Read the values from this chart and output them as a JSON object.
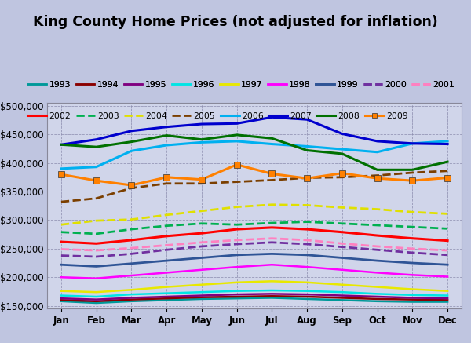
{
  "title": "King County Home Prices (not adjusted for inflation)",
  "months": [
    "Jan",
    "Feb",
    "Mar",
    "Apr",
    "May",
    "Jun",
    "Jul",
    "Aug",
    "Sep",
    "Oct",
    "Nov",
    "Dec"
  ],
  "background_color": "#bfc5e0",
  "plot_bg_color": "#d0d5ea",
  "series_order": [
    "1993",
    "1994",
    "1995",
    "1996",
    "1997",
    "1998",
    "1999",
    "2000",
    "2001",
    "2002",
    "2003",
    "2004",
    "2005",
    "2006",
    "2007",
    "2008",
    "2009"
  ],
  "styles": {
    "1993": {
      "color": "#009999",
      "ls": "-",
      "lw": 1.8,
      "marker": null,
      "ms": 5
    },
    "1994": {
      "color": "#8b0000",
      "ls": "-",
      "lw": 1.8,
      "marker": null,
      "ms": 5
    },
    "1995": {
      "color": "#800080",
      "ls": "-",
      "lw": 1.8,
      "marker": null,
      "ms": 5
    },
    "1996": {
      "color": "#00e5e5",
      "ls": "-",
      "lw": 1.8,
      "marker": null,
      "ms": 5
    },
    "1997": {
      "color": "#e8e800",
      "ls": "-",
      "lw": 1.8,
      "marker": null,
      "ms": 5
    },
    "1998": {
      "color": "#ff00ff",
      "ls": "-",
      "lw": 1.8,
      "marker": null,
      "ms": 5
    },
    "1999": {
      "color": "#2f5496",
      "ls": "-",
      "lw": 2.0,
      "marker": null,
      "ms": 5
    },
    "2000": {
      "color": "#7030a0",
      "ls": "--",
      "lw": 2.0,
      "marker": null,
      "ms": 5
    },
    "2001": {
      "color": "#ff80c0",
      "ls": "--",
      "lw": 2.0,
      "marker": null,
      "ms": 5
    },
    "2002": {
      "color": "#ff0000",
      "ls": "-",
      "lw": 2.2,
      "marker": null,
      "ms": 5
    },
    "2003": {
      "color": "#00b050",
      "ls": "--",
      "lw": 2.0,
      "marker": null,
      "ms": 5
    },
    "2004": {
      "color": "#e0e000",
      "ls": "--",
      "lw": 2.0,
      "marker": null,
      "ms": 5
    },
    "2005": {
      "color": "#7b3f00",
      "ls": "--",
      "lw": 2.0,
      "marker": null,
      "ms": 5
    },
    "2006": {
      "color": "#00b0f0",
      "ls": "-",
      "lw": 2.2,
      "marker": null,
      "ms": 5
    },
    "2007": {
      "color": "#0000cd",
      "ls": "-",
      "lw": 2.2,
      "marker": null,
      "ms": 5
    },
    "2008": {
      "color": "#007000",
      "ls": "-",
      "lw": 2.2,
      "marker": null,
      "ms": 5
    },
    "2009": {
      "color": "#ff8000",
      "ls": "-",
      "lw": 2.2,
      "marker": "s",
      "ms": 6
    }
  },
  "data": {
    "1993": [
      158000,
      155000,
      158000,
      160000,
      162000,
      163000,
      164000,
      162000,
      160000,
      158000,
      157000,
      157000
    ],
    "1994": [
      160000,
      158000,
      161000,
      163000,
      165000,
      166000,
      167000,
      166000,
      164000,
      162000,
      161000,
      160000
    ],
    "1995": [
      163000,
      161000,
      164000,
      166000,
      168000,
      170000,
      171000,
      170000,
      168000,
      166000,
      164000,
      163000
    ],
    "1996": [
      168000,
      166000,
      170000,
      172000,
      174000,
      176000,
      177000,
      176000,
      174000,
      171000,
      169000,
      168000
    ],
    "1997": [
      176000,
      174000,
      178000,
      183000,
      187000,
      191000,
      193000,
      191000,
      187000,
      183000,
      179000,
      176000
    ],
    "1998": [
      200000,
      198000,
      203000,
      208000,
      213000,
      218000,
      222000,
      218000,
      213000,
      208000,
      204000,
      201000
    ],
    "1999": [
      222000,
      219000,
      224000,
      229000,
      234000,
      239000,
      241000,
      239000,
      234000,
      229000,
      225000,
      222000
    ],
    "2000": [
      238000,
      236000,
      241000,
      248000,
      254000,
      258000,
      261000,
      258000,
      253000,
      248000,
      243000,
      239000
    ],
    "2001": [
      249000,
      247000,
      251000,
      256000,
      261000,
      265000,
      268000,
      265000,
      259000,
      254000,
      250000,
      247000
    ],
    "2002": [
      262000,
      259000,
      265000,
      272000,
      277000,
      284000,
      287000,
      284000,
      279000,
      273000,
      268000,
      264000
    ],
    "2003": [
      279000,
      276000,
      284000,
      290000,
      294000,
      292000,
      295000,
      297000,
      294000,
      291000,
      288000,
      285000
    ],
    "2004": [
      292000,
      299000,
      301000,
      309000,
      316000,
      323000,
      327000,
      326000,
      322000,
      319000,
      314000,
      311000
    ],
    "2005": [
      332000,
      338000,
      356000,
      364000,
      364000,
      367000,
      370000,
      374000,
      375000,
      378000,
      383000,
      386000
    ],
    "2006": [
      390000,
      393000,
      421000,
      431000,
      436000,
      438000,
      433000,
      429000,
      424000,
      419000,
      434000,
      438000
    ],
    "2007": [
      432000,
      441000,
      456000,
      463000,
      468000,
      469000,
      480000,
      476000,
      451000,
      438000,
      434000,
      433000
    ],
    "2008": [
      432000,
      428000,
      437000,
      448000,
      441000,
      449000,
      443000,
      422000,
      416000,
      388000,
      388000,
      402000
    ],
    "2009": [
      380000,
      369000,
      361000,
      375000,
      371000,
      397000,
      381000,
      373000,
      382000,
      373000,
      369000,
      374000
    ]
  },
  "ylim": [
    145000,
    505000
  ],
  "yticks": [
    150000,
    200000,
    250000,
    300000,
    350000,
    400000,
    450000,
    500000
  ],
  "legend_rows": [
    [
      "1993",
      "1994",
      "1995",
      "1996",
      "1997",
      "1998",
      "1999",
      "2000",
      "2001"
    ],
    [
      "2002",
      "2003",
      "2004",
      "2005",
      "2006",
      "2007",
      "2008",
      "2009"
    ]
  ]
}
